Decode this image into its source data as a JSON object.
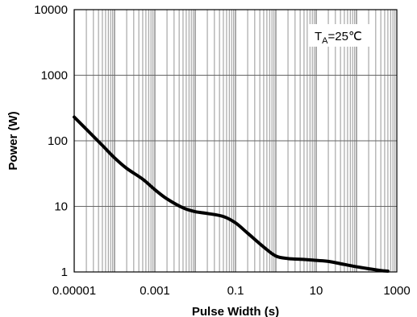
{
  "chart_data": {
    "type": "line",
    "title": "",
    "xlabel": "Pulse Width (s)",
    "ylabel": "Power (W)",
    "xscale": "log",
    "yscale": "log",
    "xlim": [
      1e-05,
      1000
    ],
    "ylim": [
      1,
      10000
    ],
    "x_ticks": [
      "0.00001",
      "0.001",
      "0.1",
      "10",
      "1000"
    ],
    "y_ticks": [
      "10000",
      "1000",
      "100",
      "10",
      "1"
    ],
    "grid": true,
    "annotation": {
      "main": "T",
      "sub": "A",
      "rest": "=25℃"
    },
    "series": [
      {
        "color": "#000000",
        "points": [
          [
            1e-05,
            230
          ],
          [
            2e-05,
            150
          ],
          [
            5e-05,
            85
          ],
          [
            0.0001,
            55
          ],
          [
            0.0002,
            38
          ],
          [
            0.0005,
            26
          ],
          [
            0.001,
            18
          ],
          [
            0.002,
            13
          ],
          [
            0.005,
            9.5
          ],
          [
            0.01,
            8.3
          ],
          [
            0.02,
            7.8
          ],
          [
            0.05,
            7.0
          ],
          [
            0.1,
            5.6
          ],
          [
            0.2,
            3.9
          ],
          [
            0.5,
            2.4
          ],
          [
            1,
            1.75
          ],
          [
            2,
            1.6
          ],
          [
            5,
            1.55
          ],
          [
            10,
            1.5
          ],
          [
            20,
            1.45
          ],
          [
            50,
            1.3
          ],
          [
            100,
            1.2
          ],
          [
            200,
            1.12
          ],
          [
            400,
            1.05
          ],
          [
            600,
            1.03
          ]
        ]
      }
    ]
  }
}
